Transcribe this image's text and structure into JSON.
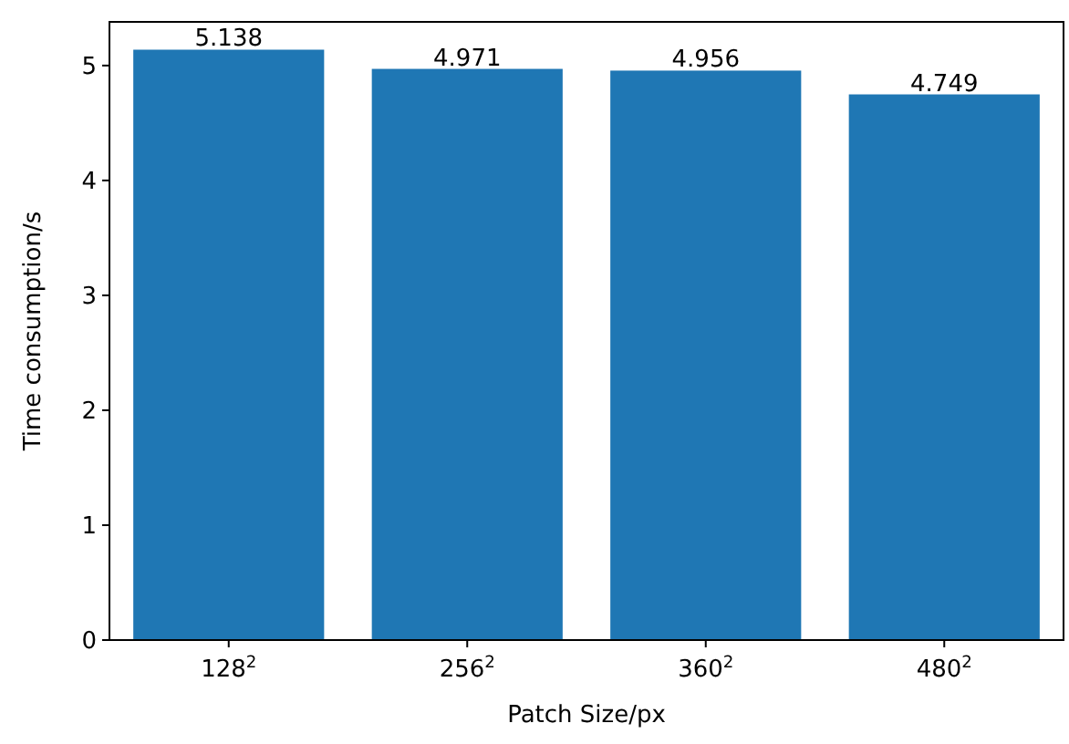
{
  "chart_data": {
    "type": "bar",
    "xlabel": "Patch Size/px",
    "ylabel": "Time consumption/s",
    "categories": [
      "128$^{2}$",
      "256$^{2}$",
      "360$^{2}$",
      "480$^{2}$"
    ],
    "values": [
      5.138,
      4.971,
      4.956,
      4.749
    ],
    "color": "#1f77b4",
    "ylim": [
      0,
      5.38
    ],
    "yticks": [
      0,
      1,
      2,
      3,
      4,
      5
    ],
    "data_labels": true
  }
}
